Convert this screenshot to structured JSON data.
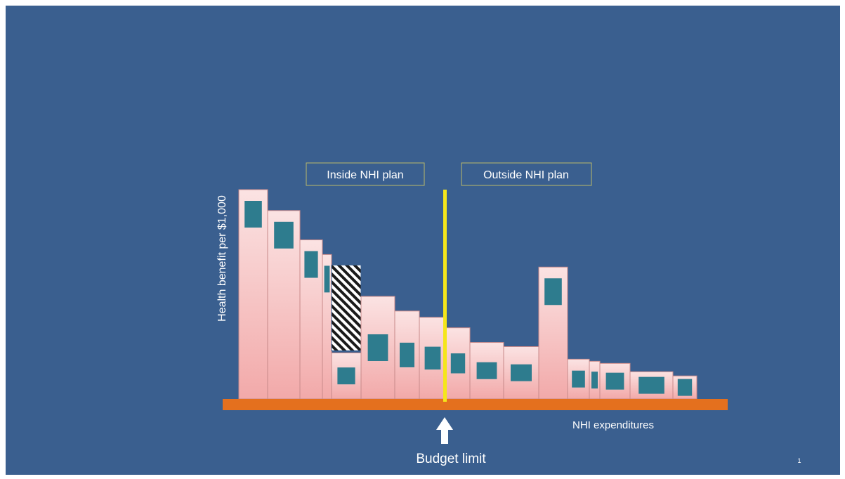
{
  "colors": {
    "background": "#3a5f8f",
    "bar_fill": "#f6c9c9",
    "bar_border": "#c88a8a",
    "inner_block": "#2e7c8e",
    "baseline": "#e4701e",
    "budget_line": "#f5e61a",
    "label_box_border": "#b9b86a",
    "text": "#ffffff"
  },
  "labels": {
    "inside_plan": "Inside NHI plan",
    "outside_plan": "Outside NHI plan",
    "y_axis": "Health benefit per $1,000",
    "x_axis": "NHI  expenditures",
    "budget": "Budget limit",
    "slide_number": "1"
  },
  "chart_data": {
    "type": "bar",
    "note_values": "relative benefit heights and relative spending widths, read off an unlabeled diagram (baseline = 0, tallest bar = 100)",
    "bars": [
      {
        "benefit": 100,
        "spend": 41,
        "hatched": false
      },
      {
        "benefit": 90,
        "spend": 46,
        "hatched": false
      },
      {
        "benefit": 76,
        "spend": 32,
        "hatched": false
      },
      {
        "benefit": 69,
        "spend": 13,
        "hatched": false
      },
      {
        "benefit": 22,
        "spend": 42,
        "hatched": false,
        "displaced": {
          "benefit_low": 23,
          "benefit_high": 64
        }
      },
      {
        "benefit": 49,
        "spend": 48,
        "hatched": false
      },
      {
        "benefit": 42,
        "spend": 35,
        "hatched": false
      },
      {
        "benefit": 39,
        "spend": 38,
        "hatched": false
      },
      {
        "benefit": 34,
        "spend": 34,
        "hatched": false
      },
      {
        "benefit": 27,
        "spend": 48,
        "hatched": false
      },
      {
        "benefit": 25,
        "spend": 50,
        "hatched": false
      },
      {
        "benefit": 63,
        "spend": 41,
        "hatched": false
      },
      {
        "benefit": 19,
        "spend": 31,
        "hatched": false
      },
      {
        "benefit": 18,
        "spend": 15,
        "hatched": false
      },
      {
        "benefit": 17,
        "spend": 43,
        "hatched": false
      },
      {
        "benefit": 13,
        "spend": 61,
        "hatched": false
      },
      {
        "benefit": 11,
        "spend": 34,
        "hatched": false
      }
    ],
    "budget_limit_index": 8,
    "budget_limit_fraction": 0.07,
    "legend": "none",
    "grid": false
  }
}
